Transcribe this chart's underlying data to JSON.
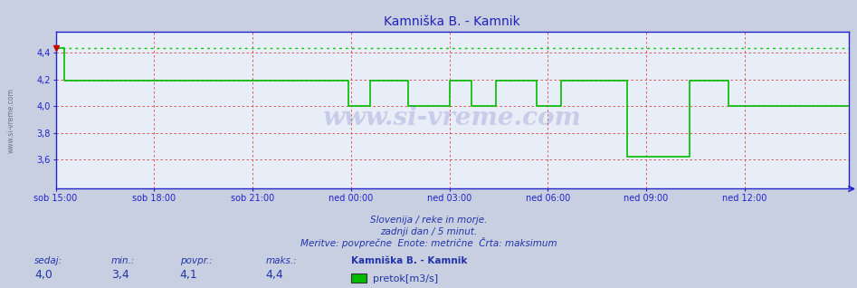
{
  "title": "Kamniška B. - Kamnik",
  "bg_color": "#c8cfe0",
  "plot_bg_color": "#e8eef8",
  "line_color": "#00bb00",
  "max_line_color": "#00cc00",
  "grid_h_color": "#dd4444",
  "grid_v_color": "#dd4444",
  "axis_color": "#2222cc",
  "tick_color": "#2222cc",
  "title_color": "#2222bb",
  "watermark": "www.si-vreme.com",
  "watermark_color": "#3333aa",
  "sidebar_text": "www.si-vreme.com",
  "subtitle1": "Slovenija / reke in morje.",
  "subtitle2": "zadnji dan / 5 minut.",
  "subtitle3": "Meritve: povprečne  Enote: metrične  Črta: maksimum",
  "legend_station": "Kamniška B. - Kamnik",
  "legend_label": "pretok[m3/s]",
  "label_sedaj": "sedaj:",
  "label_min": "min.:",
  "label_povpr": "povpr.:",
  "label_maks": "maks.:",
  "val_sedaj": "4,0",
  "val_min": "3,4",
  "val_povpr": "4,1",
  "val_maks": "4,4",
  "ylim": [
    3.38,
    4.56
  ],
  "yticks": [
    3.6,
    3.8,
    4.0,
    4.2,
    4.4
  ],
  "max_line_y": 4.44,
  "xtick_labels": [
    "sob 15:00",
    "sob 18:00",
    "sob 21:00",
    "ned 00:00",
    "ned 03:00",
    "ned 06:00",
    "ned 09:00",
    "ned 12:00"
  ],
  "xtick_positions": [
    0,
    36,
    72,
    108,
    144,
    180,
    216,
    252
  ],
  "flow_data": [
    4.44,
    4.44,
    4.44,
    4.19,
    4.19,
    4.19,
    4.19,
    4.19,
    4.19,
    4.19,
    4.19,
    4.19,
    4.19,
    4.19,
    4.19,
    4.19,
    4.19,
    4.19,
    4.19,
    4.19,
    4.19,
    4.19,
    4.19,
    4.19,
    4.19,
    4.19,
    4.19,
    4.19,
    4.19,
    4.19,
    4.19,
    4.19,
    4.19,
    4.19,
    4.19,
    4.19,
    4.19,
    4.19,
    4.19,
    4.19,
    4.19,
    4.19,
    4.19,
    4.19,
    4.19,
    4.19,
    4.19,
    4.19,
    4.19,
    4.19,
    4.19,
    4.19,
    4.19,
    4.19,
    4.19,
    4.19,
    4.19,
    4.19,
    4.19,
    4.19,
    4.19,
    4.19,
    4.19,
    4.19,
    4.19,
    4.19,
    4.19,
    4.19,
    4.19,
    4.19,
    4.19,
    4.19,
    4.19,
    4.19,
    4.19,
    4.19,
    4.19,
    4.19,
    4.19,
    4.19,
    4.19,
    4.19,
    4.19,
    4.19,
    4.19,
    4.19,
    4.19,
    4.19,
    4.19,
    4.19,
    4.19,
    4.19,
    4.19,
    4.19,
    4.19,
    4.19,
    4.19,
    4.19,
    4.19,
    4.19,
    4.19,
    4.19,
    4.19,
    4.19,
    4.19,
    4.19,
    4.19,
    4.0,
    4.0,
    4.0,
    4.0,
    4.0,
    4.0,
    4.0,
    4.0,
    4.19,
    4.19,
    4.19,
    4.19,
    4.19,
    4.19,
    4.19,
    4.19,
    4.19,
    4.19,
    4.19,
    4.19,
    4.19,
    4.19,
    4.0,
    4.0,
    4.0,
    4.0,
    4.0,
    4.0,
    4.0,
    4.0,
    4.0,
    4.0,
    4.0,
    4.0,
    4.0,
    4.0,
    4.0,
    4.19,
    4.19,
    4.19,
    4.19,
    4.19,
    4.19,
    4.19,
    4.19,
    4.0,
    4.0,
    4.0,
    4.0,
    4.0,
    4.0,
    4.0,
    4.0,
    4.0,
    4.19,
    4.19,
    4.19,
    4.19,
    4.19,
    4.19,
    4.19,
    4.19,
    4.19,
    4.19,
    4.19,
    4.19,
    4.19,
    4.19,
    4.19,
    4.0,
    4.0,
    4.0,
    4.0,
    4.0,
    4.0,
    4.0,
    4.0,
    4.0,
    4.19,
    4.19,
    4.19,
    4.19,
    4.19,
    4.19,
    4.19,
    4.19,
    4.19,
    4.19,
    4.19,
    4.19,
    4.19,
    4.19,
    4.19,
    4.19,
    4.19,
    4.19,
    4.19,
    4.19,
    4.19,
    4.19,
    4.19,
    4.19,
    3.62,
    3.62,
    3.62,
    3.62,
    3.62,
    3.62,
    3.62,
    3.62,
    3.62,
    3.62,
    3.62,
    3.62,
    3.62,
    3.62,
    3.62,
    3.62,
    3.62,
    3.62,
    3.62,
    3.62,
    3.62,
    3.62,
    3.62,
    4.19,
    4.19,
    4.19,
    4.19,
    4.19,
    4.19,
    4.19,
    4.19,
    4.19,
    4.19,
    4.19,
    4.19,
    4.19,
    4.19,
    4.0,
    4.0,
    4.0,
    4.0,
    4.0,
    4.0,
    4.0,
    4.0,
    4.0,
    4.0,
    4.0,
    4.0,
    4.0,
    4.0,
    4.0,
    4.0,
    4.0,
    4.0,
    4.0,
    4.0,
    4.0,
    4.0,
    4.0,
    4.0,
    4.0,
    4.0,
    4.0,
    4.0,
    4.0,
    4.0,
    4.0,
    4.0,
    4.0,
    4.0,
    4.0,
    4.0,
    4.0,
    4.0,
    4.0,
    4.0,
    4.0,
    4.0,
    4.0,
    4.0,
    4.0
  ]
}
